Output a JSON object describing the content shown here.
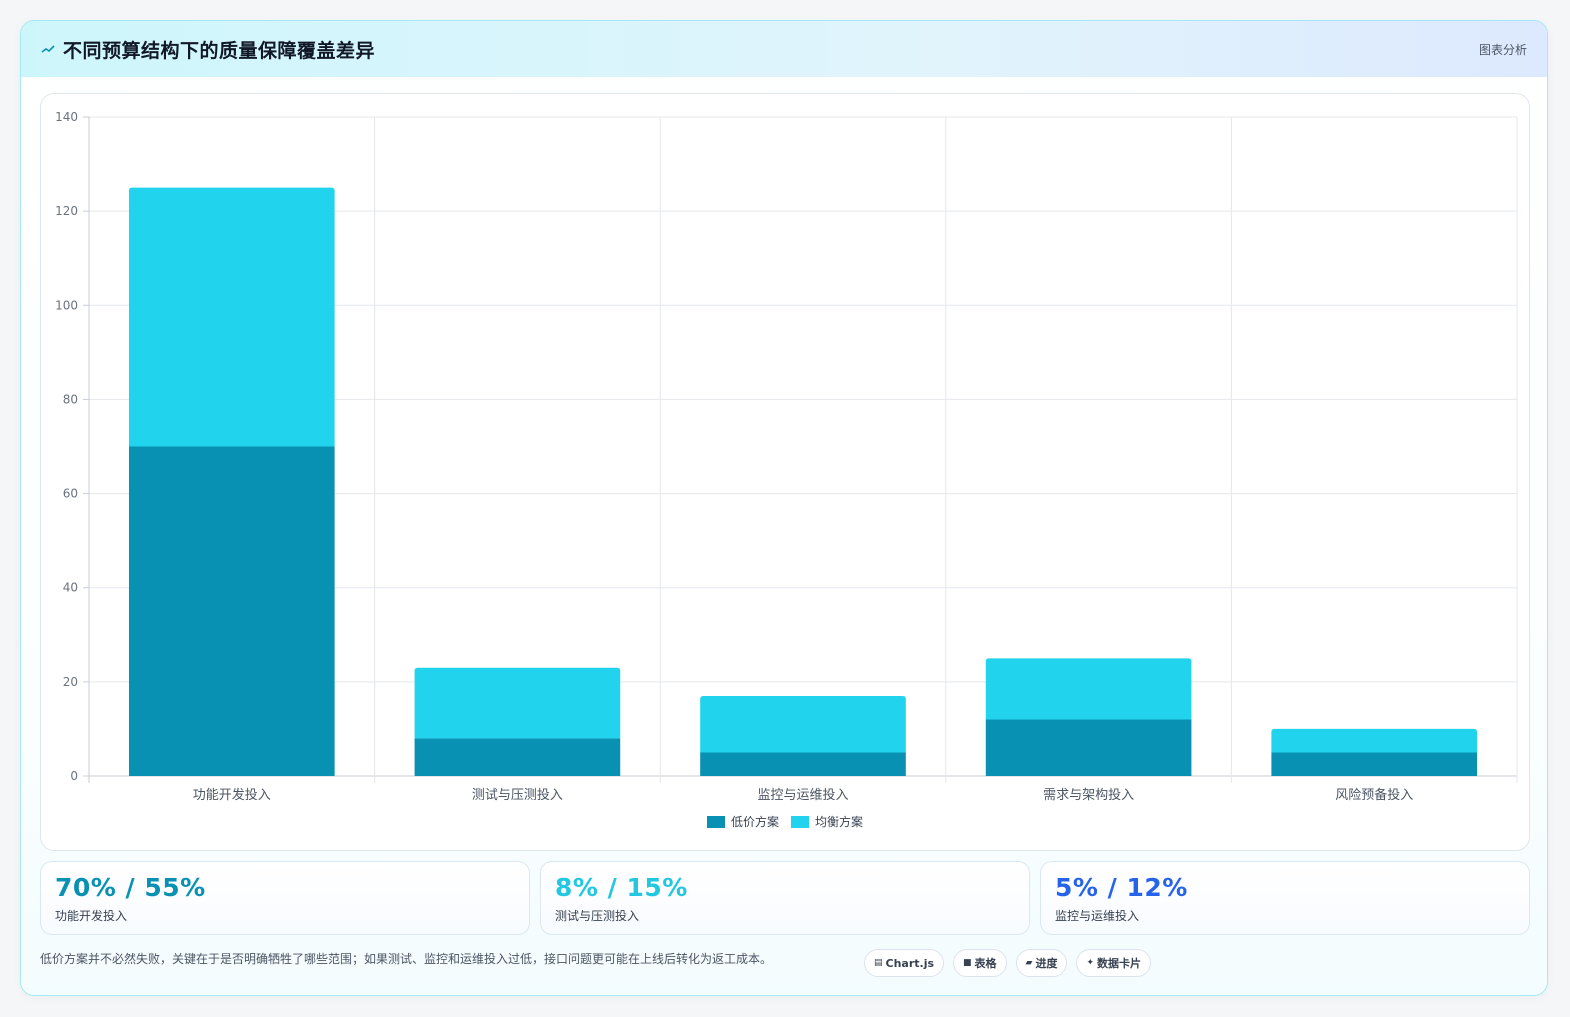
{
  "header": {
    "title": "不同预算结构下的质量保障覆盖差异",
    "tag": "图表分析",
    "icon": "trend-icon"
  },
  "chart_data": {
    "type": "bar",
    "stacked": true,
    "categories": [
      "功能开发投入",
      "测试与压测投入",
      "监控与运维投入",
      "需求与架构投入",
      "风险预备投入"
    ],
    "series": [
      {
        "name": "低价方案",
        "color": "#0891b2",
        "values": [
          70,
          8,
          5,
          12,
          5
        ]
      },
      {
        "name": "均衡方案",
        "color": "#22d3ee",
        "values": [
          55,
          15,
          12,
          13,
          5
        ]
      }
    ],
    "ylim": [
      0,
      140
    ],
    "yticks": [
      0,
      20,
      40,
      60,
      80,
      100,
      120,
      140
    ],
    "grid": true,
    "legend_position": "bottom"
  },
  "stats": [
    {
      "value": "70% / 55%",
      "label": "功能开发投入",
      "color": "#0891b2"
    },
    {
      "value": "8% / 15%",
      "label": "测试与压测投入",
      "color": "#22c7e0"
    },
    {
      "value": "5% / 12%",
      "label": "监控与运维投入",
      "color": "#2563eb"
    }
  ],
  "footer": {
    "note": "低价方案并不必然失败，关键在于是否明确牺牲了哪些范围；如果测试、监控和运维投入过低，接口问题更可能在上线后转化为返工成本。",
    "chips": [
      {
        "icon": "▤",
        "label": "Chart.js",
        "icon_name": "chart-icon"
      },
      {
        "icon": "■",
        "label": "表格",
        "icon_name": "table-icon"
      },
      {
        "icon": "▰",
        "label": "进度",
        "icon_name": "progress-icon"
      },
      {
        "icon": "✦",
        "label": "数据卡片",
        "icon_name": "sparkle-icon"
      }
    ]
  }
}
